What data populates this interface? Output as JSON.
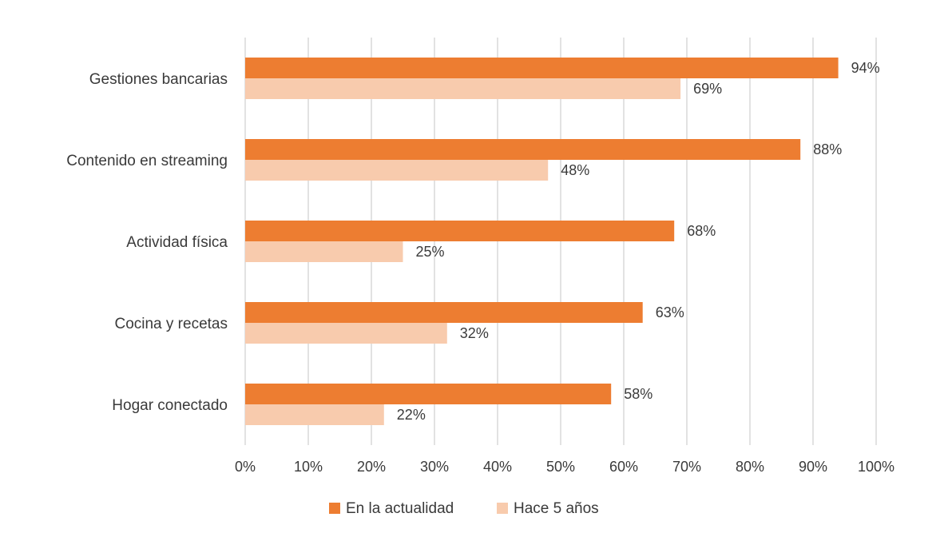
{
  "chart_data": {
    "type": "bar",
    "orientation": "horizontal",
    "categories": [
      "Gestiones bancarias",
      "Contenido en streaming",
      "Actividad física",
      "Cocina y recetas",
      "Hogar conectado"
    ],
    "series": [
      {
        "name": "En la actualidad",
        "values": [
          94,
          88,
          68,
          63,
          58
        ],
        "color": "#ed7d31"
      },
      {
        "name": "Hace 5 años",
        "values": [
          69,
          48,
          25,
          32,
          22
        ],
        "color": "#f8cbad"
      }
    ],
    "xlim": [
      0,
      100
    ],
    "xticks": [
      0,
      10,
      20,
      30,
      40,
      50,
      60,
      70,
      80,
      90,
      100
    ],
    "value_suffix": "%",
    "grid": "vertical",
    "legend_position": "bottom"
  }
}
